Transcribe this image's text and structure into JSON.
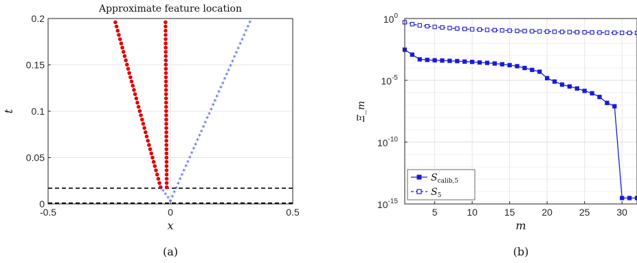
{
  "chart_data": [
    {
      "id": "a",
      "type": "scatter",
      "title": "Approximate feature location",
      "xlabel": "x",
      "ylabel": "t",
      "caption": "(a)",
      "xlim": [
        -0.5,
        0.5
      ],
      "ylim": [
        0,
        0.2
      ],
      "xticks": [
        -0.5,
        0,
        0.5
      ],
      "xtick_labels": [
        "-0.5",
        "0",
        "0.5"
      ],
      "yticks": [
        0,
        0.05,
        0.1,
        0.15,
        0.2
      ],
      "ytick_labels": [
        "0",
        "0.05",
        "0.1",
        "0.15",
        "0.2"
      ],
      "grid": true,
      "series": [
        {
          "marker": "dot",
          "color": "#e00000",
          "line_from": [
            -0.225,
            0.196
          ],
          "line_to": [
            -0.04,
            0.018
          ],
          "n_points": 40
        },
        {
          "marker": "dot",
          "color": "#e00000",
          "line_from": [
            -0.02,
            0.196
          ],
          "line_to": [
            -0.015,
            0.018
          ],
          "n_points": 40
        },
        {
          "marker": "star",
          "color": "#3344dd",
          "line_from": [
            -0.04,
            0.018
          ],
          "line_to": [
            0.0,
            0.003
          ],
          "n_points": 5
        },
        {
          "marker": "star",
          "color": "#3344dd",
          "line_from": [
            0.0,
            0.003
          ],
          "line_to": [
            0.325,
            0.196
          ],
          "n_points": 42
        }
      ],
      "hlines": [
        {
          "y": 0.017,
          "style": "dashed",
          "color": "#000000"
        },
        {
          "y": 0.001,
          "style": "dashed",
          "color": "#000000"
        }
      ]
    },
    {
      "id": "b",
      "type": "line",
      "xlabel": "m",
      "ylabel": "Ξ_m",
      "caption": "(b)",
      "yscale": "log",
      "xlim": [
        1,
        32
      ],
      "ylim": [
        1e-15,
        1
      ],
      "xticks": [
        5,
        10,
        15,
        20,
        25,
        30
      ],
      "xtick_labels": [
        "5",
        "10",
        "15",
        "20",
        "25",
        "30"
      ],
      "yticks": [
        1e-15,
        1e-10,
        1e-05,
        1
      ],
      "ytick_labels": [
        {
          "base": "10",
          "exp": "-15"
        },
        {
          "base": "10",
          "exp": "-10"
        },
        {
          "base": "10",
          "exp": "-5"
        },
        {
          "base": "10",
          "exp": "0"
        }
      ],
      "grid": true,
      "legend_position": "bottom-left",
      "x": [
        1,
        2,
        3,
        4,
        5,
        6,
        7,
        8,
        9,
        10,
        11,
        12,
        13,
        14,
        15,
        16,
        17,
        18,
        19,
        20,
        21,
        22,
        23,
        24,
        25,
        26,
        27,
        28,
        29,
        30,
        31,
        32
      ],
      "series": [
        {
          "name_main": "S",
          "name_sub": "calib,5",
          "style": "solid",
          "marker": "square-filled",
          "color": "#1a1adb",
          "values": [
            0.003,
            0.0012,
            0.0005,
            0.00045,
            0.00042,
            0.0004,
            0.00038,
            0.00036,
            0.00033,
            0.00031,
            0.00028,
            0.00026,
            0.00023,
            0.0002,
            0.00017,
            0.00014,
            0.0001,
            7e-05,
            5e-05,
            1.5e-05,
            8e-06,
            4.5e-06,
            3.2e-06,
            2.2e-06,
            1.4e-06,
            9e-07,
            4.5e-07,
            1.5e-07,
            8e-08,
            3e-15,
            3e-15,
            3e-15
          ]
        },
        {
          "name_main": "S",
          "name_sub": "5",
          "style": "dashed",
          "marker": "square-open",
          "color": "#1a1adb",
          "values": [
            0.5,
            0.35,
            0.28,
            0.24,
            0.21,
            0.19,
            0.17,
            0.155,
            0.145,
            0.135,
            0.128,
            0.12,
            0.115,
            0.11,
            0.105,
            0.1,
            0.097,
            0.094,
            0.091,
            0.088,
            0.085,
            0.083,
            0.081,
            0.079,
            0.077,
            0.075,
            0.074,
            0.072,
            0.071,
            0.07,
            0.069,
            0.068
          ]
        }
      ]
    }
  ]
}
